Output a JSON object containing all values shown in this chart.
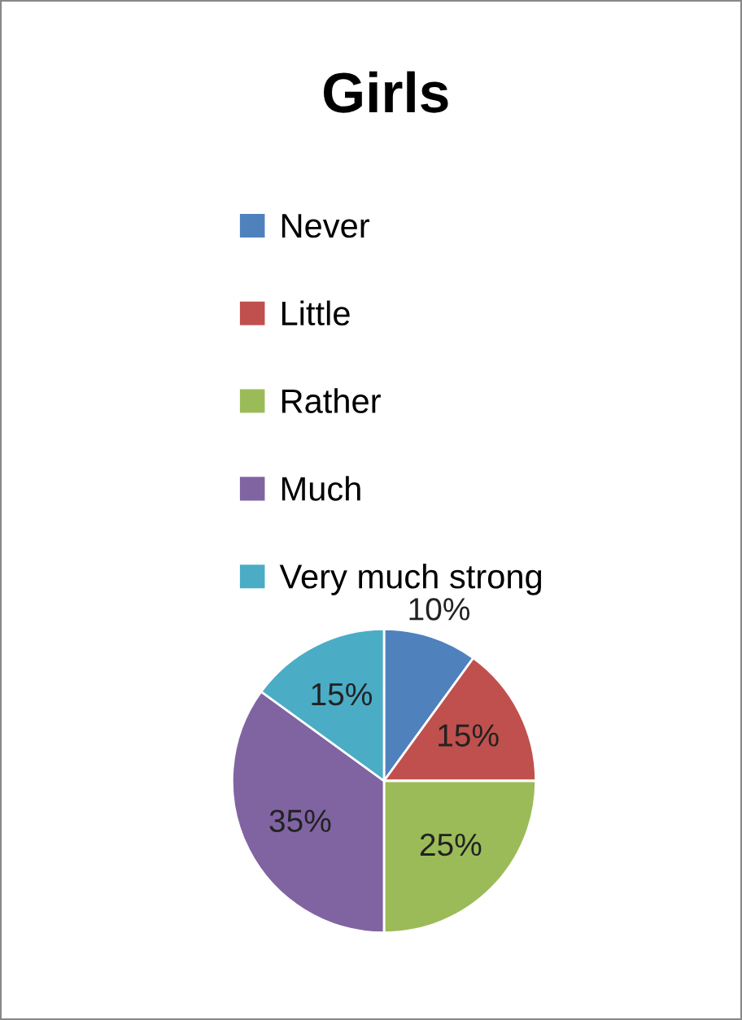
{
  "chart_data": {
    "type": "pie",
    "title": "Girls",
    "categories": [
      "Never",
      "Little",
      "Rather",
      "Much",
      "Very much strong"
    ],
    "values": [
      10,
      15,
      25,
      35,
      15
    ],
    "colors": [
      "#4f81bd",
      "#c0504d",
      "#9bbb59",
      "#8064a2",
      "#4bacc6"
    ],
    "value_labels": [
      "10%",
      "15%",
      "25%",
      "35%",
      "15%"
    ],
    "legend": "top"
  }
}
